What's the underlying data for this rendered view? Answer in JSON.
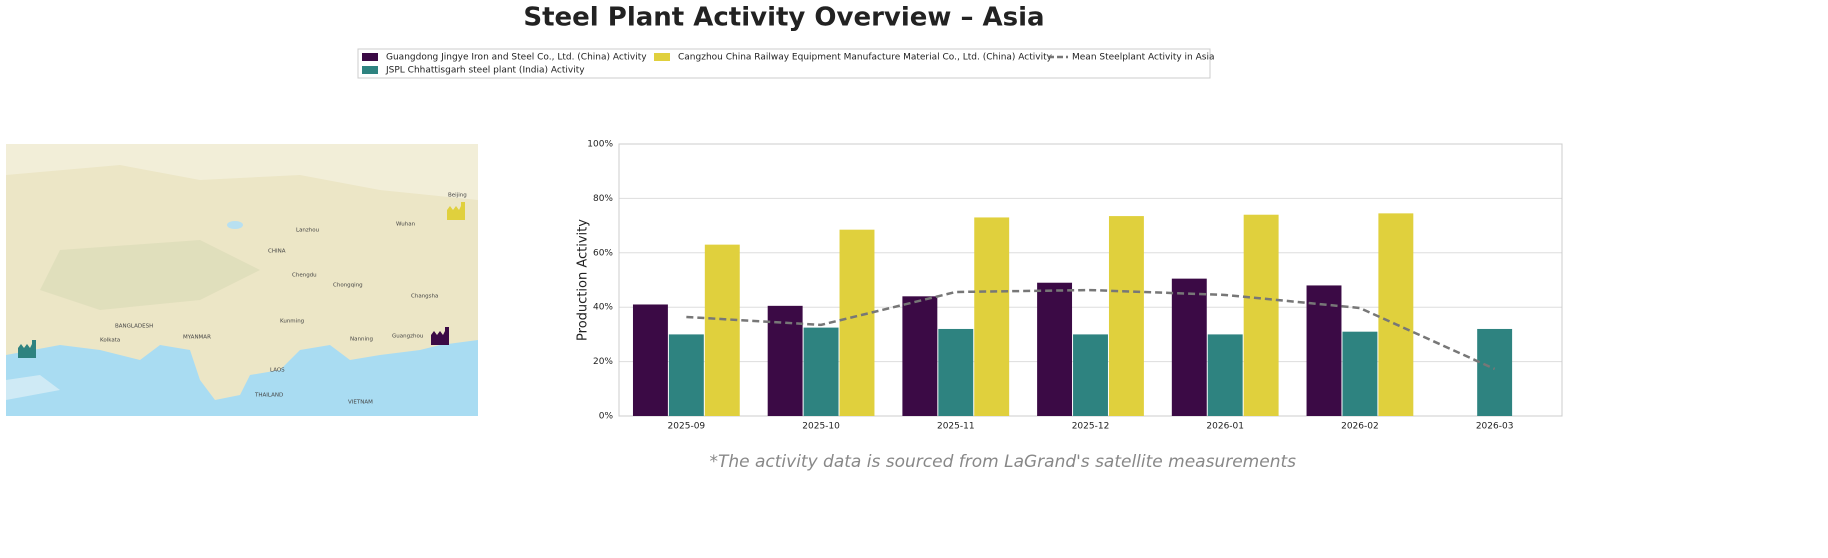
{
  "chart_data": {
    "type": "bar",
    "title": "Steel Plant Activity Overview – Asia",
    "y_label": "Production Activity",
    "footnote": "*The activity data is sourced from LaGrand's satellite measurements",
    "categories": [
      "2025-09",
      "2025-10",
      "2025-11",
      "2025-12",
      "2026-01",
      "2026-02",
      "2026-03"
    ],
    "series": [
      {
        "name": "Guangdong Jingye Iron and Steel Co., Ltd. (China) Activity",
        "color": "#3b0a45",
        "values": [
          41,
          40.5,
          44,
          49,
          50.5,
          48,
          null
        ]
      },
      {
        "name": "JSPL Chhattisgarh steel plant (India) Activity",
        "color": "#2e8380",
        "values": [
          30,
          32.5,
          32,
          30,
          30,
          31,
          32
        ]
      },
      {
        "name": "Cangzhou China Railway Equipment Manufacture Material Co., Ltd. (China) Activity",
        "color": "#e0d03d",
        "values": [
          63,
          68.5,
          73,
          73.5,
          74,
          74.5,
          null
        ]
      },
      {
        "name": "Mean Steelplant Activity in Asia",
        "type": "line",
        "line_style": "dashed",
        "color": "#777777",
        "values": [
          36.4,
          33.5,
          45.6,
          46.3,
          44.5,
          39.7,
          17.3
        ]
      }
    ],
    "ylim": [
      0,
      100
    ],
    "yticks": [
      {
        "value": 0,
        "label": "0%"
      },
      {
        "value": 20,
        "label": "20%"
      },
      {
        "value": 40,
        "label": "40%"
      },
      {
        "value": 60,
        "label": "60%"
      },
      {
        "value": 80,
        "label": "80%"
      },
      {
        "value": 100,
        "label": "100%"
      }
    ],
    "grid": true,
    "legend": "top"
  },
  "map": {
    "labels": [
      "CHINA",
      "MYANMAR",
      "THAILAND",
      "LAOS",
      "VIETNAM",
      "BANGLADESH",
      "Chengdu",
      "Chongqing",
      "Kunming",
      "Guangzhou",
      "Wuhan",
      "Beijing",
      "Kolkata",
      "Lanzhou",
      "Nanning",
      "Changsha"
    ]
  }
}
